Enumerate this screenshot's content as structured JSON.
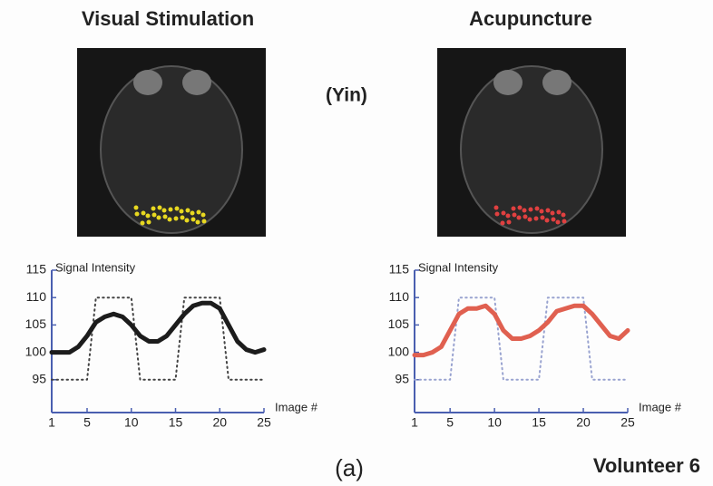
{
  "figure": {
    "condition": "(Yin)",
    "panel": "(a)",
    "subject": "Volunteer 6"
  },
  "chart_data": [
    {
      "type": "line",
      "title": "Visual Stimulation",
      "y_label": "Signal Intensity",
      "x_label": "Image #",
      "x": [
        1,
        2,
        3,
        4,
        5,
        6,
        7,
        8,
        9,
        10,
        11,
        12,
        13,
        14,
        15,
        16,
        17,
        18,
        19,
        20,
        21,
        22,
        23,
        24,
        25
      ],
      "xlim": [
        1,
        25
      ],
      "xticks": [
        1,
        5,
        10,
        15,
        20,
        25
      ],
      "ylim": [
        89,
        115
      ],
      "yticks": [
        95,
        100,
        105,
        110,
        115
      ],
      "blob_color": "#e8d820",
      "series": [
        {
          "color": "#1c1c1c",
          "style": "solid",
          "values": [
            100,
            100,
            100,
            101,
            103,
            105.5,
            106.5,
            107,
            106.5,
            105,
            103,
            102,
            102,
            103,
            105,
            107,
            108.5,
            109,
            109,
            108,
            105,
            102,
            100.5,
            100,
            100.5
          ]
        },
        {
          "color": "#444444",
          "style": "dotted",
          "values": [
            95,
            95,
            95,
            95,
            95,
            110,
            110,
            110,
            110,
            110,
            95,
            95,
            95,
            95,
            95,
            110,
            110,
            110,
            110,
            110,
            95,
            95,
            95,
            95,
            95
          ]
        }
      ]
    },
    {
      "type": "line",
      "title": "Acupuncture",
      "y_label": "Signal Intensity",
      "x_label": "Image #",
      "x": [
        1,
        2,
        3,
        4,
        5,
        6,
        7,
        8,
        9,
        10,
        11,
        12,
        13,
        14,
        15,
        16,
        17,
        18,
        19,
        20,
        21,
        22,
        23,
        24,
        25
      ],
      "xlim": [
        1,
        25
      ],
      "xticks": [
        1,
        5,
        10,
        15,
        20,
        25
      ],
      "ylim": [
        89,
        115
      ],
      "yticks": [
        95,
        100,
        105,
        110,
        115
      ],
      "blob_color": "#e04040",
      "series": [
        {
          "color": "#e06050",
          "style": "solid",
          "values": [
            99.5,
            99.5,
            100,
            101,
            104,
            107,
            108,
            108,
            108.5,
            107,
            104,
            102.5,
            102.5,
            103,
            104,
            105.5,
            107.5,
            108,
            108.5,
            108.5,
            107,
            105,
            103,
            102.5,
            104
          ]
        },
        {
          "color": "#99a3d0",
          "style": "dotted",
          "values": [
            95,
            95,
            95,
            95,
            95,
            110,
            110,
            110,
            110,
            110,
            95,
            95,
            95,
            95,
            95,
            110,
            110,
            110,
            110,
            110,
            95,
            95,
            95,
            95,
            95
          ]
        }
      ]
    }
  ]
}
